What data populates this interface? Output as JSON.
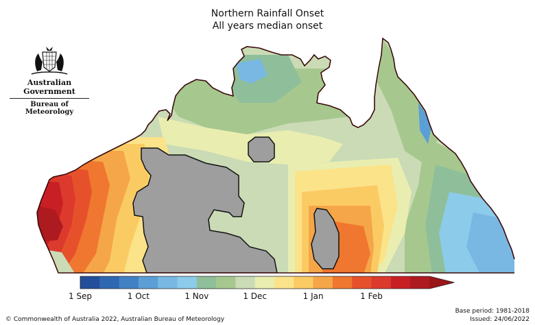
{
  "title": "Northern Rainfall Onset",
  "subtitle": "All years median onset",
  "logo": {
    "government": "Australian Government",
    "agency": "Bureau of Meteorology"
  },
  "legend": {
    "colors": [
      "#234f9a",
      "#2f67b1",
      "#4281c4",
      "#5c9fd6",
      "#78b8e2",
      "#8dcbea",
      "#8fbf9a",
      "#a6c88e",
      "#cadbb6",
      "#e9eeb0",
      "#fbe38a",
      "#fbcb63",
      "#f5a648",
      "#f0772f",
      "#e6512b",
      "#db3a2d",
      "#c81f25",
      "#ad1a1f"
    ],
    "tick_labels": [
      "1 Sep",
      "1 Oct",
      "1 Nov",
      "1 Dec",
      "1 Jan",
      "1 Feb"
    ],
    "tick_positions": [
      0,
      3,
      6,
      9,
      12,
      15
    ],
    "arrow_color": "#9b1519"
  },
  "map": {
    "nodata_color": "#9e9e9e",
    "coast_color": "#3a0a0a"
  },
  "footer": {
    "copyright": "© Commonwealth of Australia 2022, Australian Bureau of Meteorology",
    "base_period": "Base period: 1981-2018",
    "issued": "Issued: 24/06/2022"
  }
}
